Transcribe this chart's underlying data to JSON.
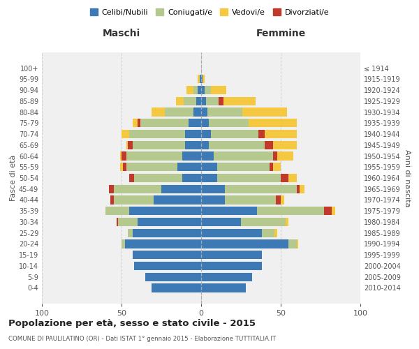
{
  "age_groups": [
    "0-4",
    "5-9",
    "10-14",
    "15-19",
    "20-24",
    "25-29",
    "30-34",
    "35-39",
    "40-44",
    "45-49",
    "50-54",
    "55-59",
    "60-64",
    "65-69",
    "70-74",
    "75-79",
    "80-84",
    "85-89",
    "90-94",
    "95-99",
    "100+"
  ],
  "birth_years": [
    "2010-2014",
    "2005-2009",
    "2000-2004",
    "1995-1999",
    "1990-1994",
    "1985-1989",
    "1980-1984",
    "1975-1979",
    "1970-1974",
    "1965-1969",
    "1960-1964",
    "1955-1959",
    "1950-1954",
    "1945-1949",
    "1940-1944",
    "1935-1939",
    "1930-1934",
    "1925-1929",
    "1920-1924",
    "1915-1919",
    "≤ 1914"
  ],
  "males": {
    "celibi": [
      31,
      35,
      42,
      43,
      48,
      43,
      40,
      45,
      30,
      25,
      12,
      15,
      12,
      10,
      10,
      8,
      5,
      3,
      2,
      1,
      0
    ],
    "coniugati": [
      0,
      0,
      0,
      0,
      2,
      3,
      12,
      15,
      25,
      30,
      30,
      32,
      35,
      33,
      35,
      30,
      18,
      8,
      3,
      0,
      0
    ],
    "vedovi": [
      0,
      0,
      0,
      0,
      0,
      0,
      0,
      0,
      0,
      0,
      0,
      2,
      1,
      1,
      5,
      3,
      8,
      5,
      4,
      1,
      0
    ],
    "divorziati": [
      0,
      0,
      0,
      0,
      0,
      0,
      1,
      0,
      2,
      3,
      3,
      2,
      3,
      3,
      0,
      2,
      0,
      0,
      0,
      0,
      0
    ]
  },
  "females": {
    "nubili": [
      28,
      32,
      38,
      38,
      55,
      38,
      25,
      35,
      15,
      15,
      10,
      10,
      8,
      5,
      6,
      5,
      4,
      3,
      2,
      1,
      0
    ],
    "coniugate": [
      0,
      0,
      0,
      0,
      5,
      8,
      28,
      42,
      32,
      45,
      40,
      33,
      37,
      35,
      30,
      25,
      22,
      8,
      4,
      0,
      0
    ],
    "vedove": [
      0,
      0,
      0,
      0,
      1,
      2,
      2,
      2,
      2,
      3,
      5,
      5,
      10,
      15,
      20,
      30,
      28,
      20,
      10,
      1,
      0
    ],
    "divorziate": [
      0,
      0,
      0,
      0,
      0,
      0,
      0,
      5,
      3,
      2,
      5,
      2,
      3,
      5,
      4,
      0,
      0,
      3,
      0,
      0,
      0
    ]
  },
  "colors": {
    "celibi": "#3d7ab5",
    "coniugati": "#b5c98e",
    "vedovi": "#f5c842",
    "divorziati": "#c0392b"
  },
  "title": "Popolazione per età, sesso e stato civile - 2015",
  "subtitle": "COMUNE DI PAULILATINO (OR) - Dati ISTAT 1° gennaio 2015 - Elaborazione TUTTITALIA.IT",
  "xlabel_left": "Maschi",
  "xlabel_right": "Femmine",
  "ylabel_left": "Fasce di età",
  "ylabel_right": "Anni di nascita",
  "xlim": 100,
  "bg_color": "#f0f0f0",
  "grid_color": "#cccccc"
}
